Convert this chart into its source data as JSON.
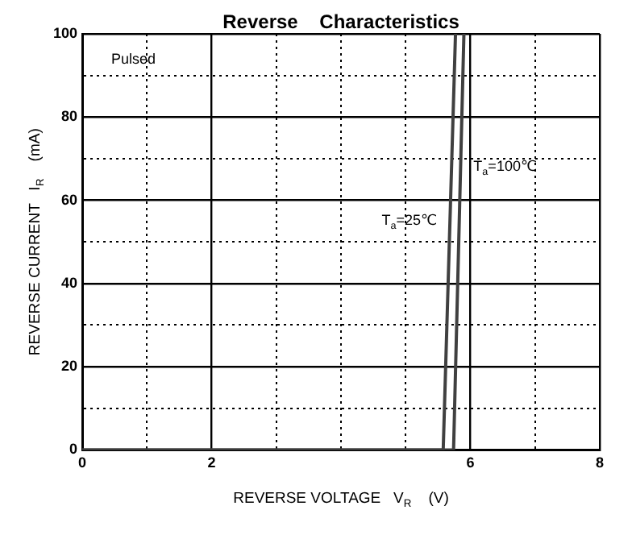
{
  "chart_data": {
    "type": "line",
    "title": "Reverse    Characteristics",
    "xlabel": "REVERSE VOLTAGE   V$_{R}$    (V)",
    "ylabel": "REVERSE CURRENT   I$_{R}$    (mA)",
    "series": [
      {
        "color": "#404040",
        "x": [
          0,
          5.58,
          5.77
        ],
        "values": [
          0,
          0,
          100
        ]
      },
      {
        "color": "#404040",
        "x": [
          0,
          5.74,
          5.9
        ],
        "values": [
          0,
          0,
          100
        ]
      }
    ],
    "xlim": [
      0,
      8
    ],
    "xticks": [
      0,
      {
        "value": 1,
        "label": null
      },
      2,
      {
        "value": 3,
        "label": null
      },
      {
        "value": 4,
        "label": null
      },
      {
        "value": 5,
        "label": null
      },
      6,
      {
        "value": 7,
        "label": null
      },
      8
    ],
    "ylim": [
      0,
      100
    ],
    "yticks": [
      0,
      {
        "value": 10,
        "label": null
      },
      20,
      {
        "value": 30,
        "label": null
      },
      40,
      {
        "value": 50,
        "label": null
      },
      60,
      {
        "value": 70,
        "label": null
      },
      80,
      {
        "value": 90,
        "label": null
      },
      100
    ],
    "grid": true,
    "marker": "none",
    "line_style": "solid",
    "legend": false,
    "annotations": [
      "Pulsed",
      "T$_{a}$=25℃",
      "T$_{a}$=100℃"
    ]
  }
}
